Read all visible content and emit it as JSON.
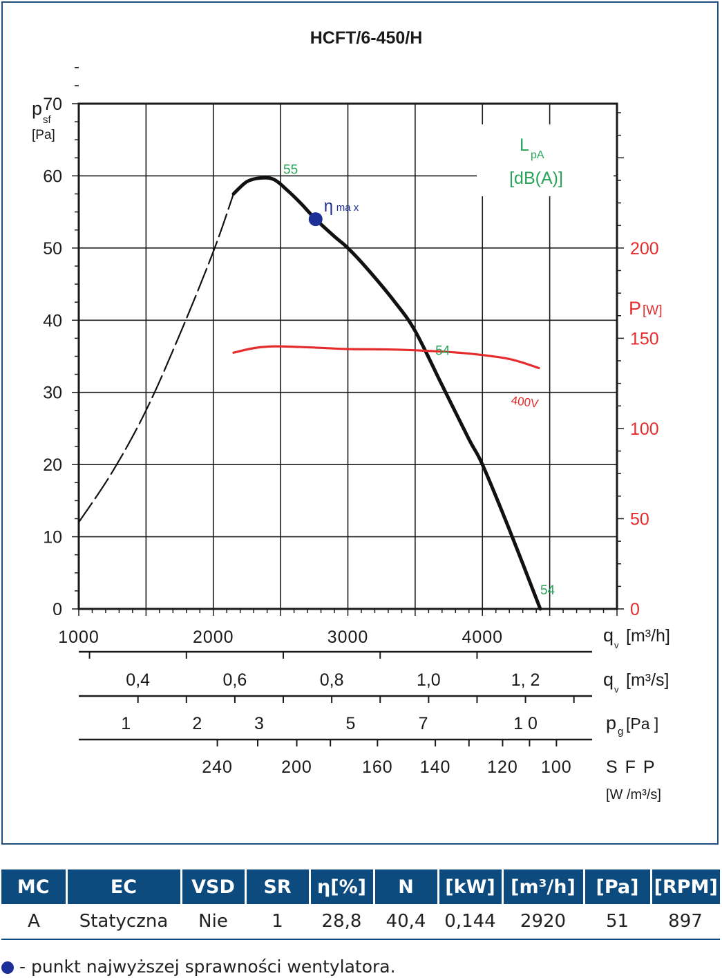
{
  "chart_data": {
    "type": "line",
    "title": "HCFT/6-450/H",
    "x_axes": [
      {
        "label": "q",
        "subscript": "v",
        "unit": "[m³/h]",
        "range": [
          1000,
          5000
        ],
        "ticks": [
          1000,
          2000,
          3000,
          4000
        ]
      },
      {
        "label": "q",
        "subscript": "v",
        "unit": "[m³/s]",
        "ticks": [
          {
            "label": "0,4",
            "qh": 1440
          },
          {
            "label": "0,6",
            "qh": 2160
          },
          {
            "label": "0,8",
            "qh": 2880
          },
          {
            "label": "1,0",
            "qh": 3600
          },
          {
            "label": "1, 2",
            "qh": 4320
          }
        ]
      },
      {
        "label": "p",
        "subscript": "g",
        "unit": "[Pa ]",
        "ticks": [
          {
            "label": "1",
            "qh": 1350
          },
          {
            "label": "2",
            "qh": 1880
          },
          {
            "label": "3",
            "qh": 2340
          },
          {
            "label": "5",
            "qh": 3020
          },
          {
            "label": "7",
            "qh": 3560
          },
          {
            "label": "1 0",
            "qh": 4320
          }
        ]
      },
      {
        "label": "S F P",
        "unit": "[W /m³/s]",
        "ticks": [
          {
            "label": "240",
            "qh": 2030
          },
          {
            "label": "200",
            "qh": 2620
          },
          {
            "label": "160",
            "qh": 3220
          },
          {
            "label": "140",
            "qh": 3650
          },
          {
            "label": "120",
            "qh": 4150
          },
          {
            "label": "100",
            "qh": 4550
          }
        ]
      }
    ],
    "y_left": {
      "label": "p",
      "subscript": "sf",
      "unit": "[Pa]",
      "range": [
        0,
        70
      ],
      "ticks": [
        0,
        10,
        20,
        30,
        40,
        50,
        60,
        70
      ]
    },
    "y_right": {
      "label": "P",
      "unit": "[W]",
      "range": [
        0,
        200
      ],
      "ticks": [
        0,
        50,
        100,
        150,
        200
      ]
    },
    "series": [
      {
        "role": "pressure",
        "style": "dashed",
        "color": "#111111",
        "x": [
          1000,
          1250,
          1500,
          1750,
          2000,
          2150
        ],
        "y": [
          12,
          19,
          27.5,
          38,
          49.5,
          57.5
        ]
      },
      {
        "role": "pressure",
        "style": "solid",
        "color": "#111111",
        "x": [
          2150,
          2250,
          2350,
          2450,
          2550,
          2650,
          2760,
          2900,
          3000,
          3150,
          3350,
          3500,
          3700,
          3900,
          4000,
          4200,
          4430
        ],
        "y": [
          57.5,
          59.2,
          59.7,
          59.5,
          58,
          56.2,
          54,
          51.6,
          50,
          47,
          42.5,
          38.5,
          31,
          23.5,
          20,
          11,
          0
        ]
      },
      {
        "name": "400V",
        "role": "power",
        "style": "solid",
        "color": "#e52b2b",
        "axis": "right",
        "x": [
          2150,
          2300,
          2450,
          2700,
          3000,
          3300,
          3600,
          3900,
          4200,
          4420
        ],
        "y": [
          142,
          144.5,
          145.5,
          145,
          144,
          143.8,
          143,
          141.5,
          138.5,
          133.5
        ]
      }
    ],
    "annotations": [
      {
        "text": "55",
        "x": 2520,
        "y": 60.3,
        "color": "#2aa35a"
      },
      {
        "text": "54",
        "x": 3650,
        "y": 35.2,
        "color": "#2aa35a"
      },
      {
        "text": "54",
        "x": 4430,
        "y": 2,
        "color": "#2aa35a"
      },
      {
        "text": "400V",
        "x": 4210,
        "y": 28.4,
        "color": "#e52b2b"
      }
    ],
    "marker": {
      "label": "η",
      "sublabel": "ma x",
      "x": 2760,
      "y": 54,
      "color": "#1c2f98"
    },
    "lpa_label": {
      "main": "L",
      "sub": "pA",
      "unit": "[dB(A)]",
      "color": "#2aa35a"
    },
    "grid": true
  },
  "table": {
    "headers": [
      "MC",
      "EC",
      "VSD",
      "SR",
      "η[%]",
      "N",
      "[kW]",
      "[m³/h]",
      "[Pa]",
      "[RPM]"
    ],
    "row": [
      "A",
      "Statyczna",
      "Nie",
      "1",
      "28,8",
      "40,4",
      "0,144",
      "2920",
      "51",
      "897"
    ]
  },
  "footnote": "- punkt najwyższej sprawności wentylatora."
}
